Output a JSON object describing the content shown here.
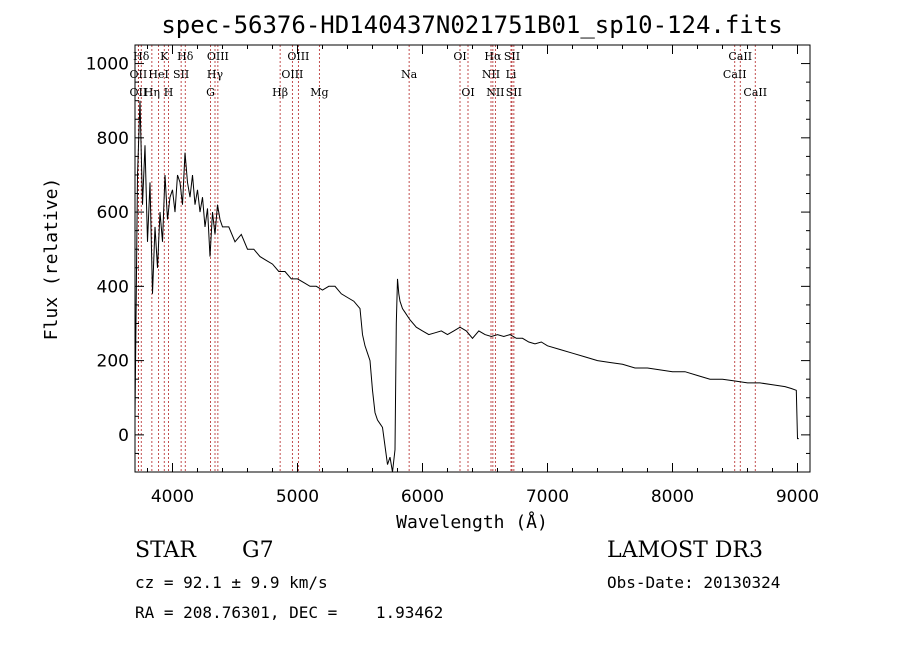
{
  "chart_data": {
    "type": "line",
    "title": "spec-56376-HD140437N021751B01_sp10-124.fits",
    "xlabel": "Wavelength (Å)",
    "ylabel": "Flux (relative)",
    "xlim": [
      3700,
      9100
    ],
    "ylim": [
      -100,
      1050
    ],
    "xticks": [
      4000,
      5000,
      6000,
      7000,
      8000,
      9000
    ],
    "yticks": [
      0,
      200,
      400,
      600,
      800,
      1000
    ],
    "grid": false,
    "series": [
      {
        "name": "flux",
        "x": [
          3700,
          3720,
          3740,
          3760,
          3780,
          3800,
          3820,
          3840,
          3860,
          3880,
          3900,
          3920,
          3940,
          3960,
          3980,
          4000,
          4020,
          4040,
          4060,
          4080,
          4100,
          4120,
          4140,
          4160,
          4180,
          4200,
          4220,
          4240,
          4260,
          4280,
          4300,
          4320,
          4340,
          4360,
          4380,
          4400,
          4450,
          4500,
          4550,
          4600,
          4650,
          4700,
          4750,
          4800,
          4850,
          4900,
          4950,
          5000,
          5050,
          5100,
          5150,
          5200,
          5250,
          5300,
          5350,
          5400,
          5450,
          5500,
          5520,
          5540,
          5560,
          5580,
          5600,
          5620,
          5640,
          5660,
          5680,
          5700,
          5720,
          5740,
          5760,
          5780,
          5790,
          5800,
          5810,
          5820,
          5840,
          5860,
          5880,
          5900,
          5950,
          6000,
          6050,
          6100,
          6150,
          6200,
          6250,
          6300,
          6350,
          6400,
          6450,
          6500,
          6550,
          6600,
          6650,
          6700,
          6750,
          6800,
          6850,
          6900,
          6950,
          7000,
          7100,
          7200,
          7300,
          7400,
          7500,
          7600,
          7700,
          7800,
          7900,
          8000,
          8100,
          8200,
          8300,
          8400,
          8500,
          8600,
          8700,
          8800,
          8900,
          8950,
          8990,
          9000,
          9010
        ],
        "y": [
          50,
          700,
          900,
          620,
          780,
          520,
          680,
          380,
          560,
          450,
          600,
          520,
          700,
          580,
          640,
          660,
          600,
          700,
          680,
          620,
          760,
          680,
          640,
          700,
          620,
          660,
          600,
          640,
          560,
          610,
          480,
          600,
          540,
          620,
          580,
          560,
          560,
          520,
          540,
          500,
          500,
          480,
          470,
          460,
          440,
          440,
          420,
          420,
          410,
          400,
          400,
          390,
          400,
          400,
          380,
          370,
          360,
          340,
          270,
          240,
          220,
          200,
          120,
          60,
          40,
          30,
          20,
          -30,
          -80,
          -60,
          -100,
          -40,
          300,
          420,
          380,
          360,
          340,
          330,
          320,
          310,
          290,
          280,
          270,
          275,
          280,
          270,
          280,
          290,
          280,
          260,
          280,
          270,
          265,
          270,
          265,
          270,
          260,
          260,
          250,
          245,
          250,
          240,
          230,
          220,
          210,
          200,
          195,
          190,
          180,
          180,
          175,
          170,
          170,
          160,
          150,
          150,
          145,
          140,
          140,
          135,
          130,
          125,
          120,
          -10,
          -10
        ],
        "color": "#000000"
      }
    ],
    "lines": [
      {
        "label": "Hδ",
        "x": 3750,
        "row": 0
      },
      {
        "label": "OII",
        "x": 3727,
        "row": 1
      },
      {
        "label": "OII",
        "x": 3727,
        "row": 2
      },
      {
        "label": "K",
        "x": 3934,
        "row": 0
      },
      {
        "label": "HeI",
        "x": 3889,
        "row": 1
      },
      {
        "label": "Hη",
        "x": 3835,
        "row": 2
      },
      {
        "label": "SII",
        "x": 4069,
        "row": 1
      },
      {
        "label": "H",
        "x": 3968,
        "row": 2
      },
      {
        "label": "Hδ",
        "x": 4102,
        "row": 0
      },
      {
        "label": "OIII",
        "x": 4363,
        "row": 0
      },
      {
        "label": "Hγ",
        "x": 4340,
        "row": 1
      },
      {
        "label": "G",
        "x": 4304,
        "row": 2
      },
      {
        "label": "Hβ",
        "x": 4861,
        "row": 2
      },
      {
        "label": "OIII",
        "x": 5007,
        "row": 0
      },
      {
        "label": "OIII",
        "x": 4959,
        "row": 1
      },
      {
        "label": "Mg",
        "x": 5175,
        "row": 2
      },
      {
        "label": "Na",
        "x": 5893,
        "row": 1
      },
      {
        "label": "OI",
        "x": 6300,
        "row": 0
      },
      {
        "label": "OI",
        "x": 6364,
        "row": 2
      },
      {
        "label": "Hα",
        "x": 6563,
        "row": 0
      },
      {
        "label": "NII",
        "x": 6548,
        "row": 1
      },
      {
        "label": "NII",
        "x": 6583,
        "row": 2
      },
      {
        "label": "SII",
        "x": 6716,
        "row": 0
      },
      {
        "label": "Li",
        "x": 6708,
        "row": 1
      },
      {
        "label": "SII",
        "x": 6731,
        "row": 2
      },
      {
        "label": "CaII",
        "x": 8542,
        "row": 0
      },
      {
        "label": "CaII",
        "x": 8498,
        "row": 1
      },
      {
        "label": "CaII",
        "x": 8662,
        "row": 2
      }
    ]
  },
  "info": {
    "class": "STAR",
    "subclass": "G7",
    "survey": "LAMOST DR3",
    "cz": "cz = 92.1 ± 9.9 km/s",
    "obs_date": "Obs-Date: 20130324",
    "coords": "RA = 208.76301, DEC =    1.93462"
  }
}
